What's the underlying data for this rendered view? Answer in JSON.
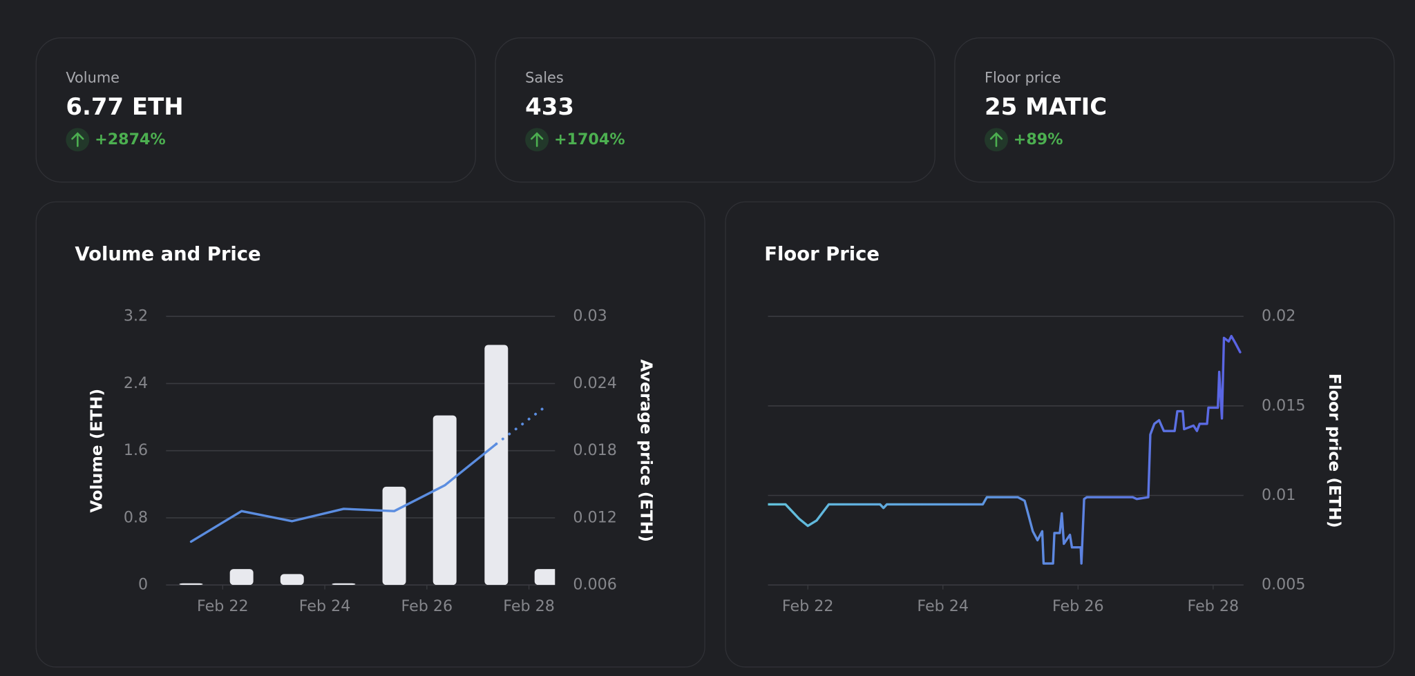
{
  "stats": [
    {
      "label": "Volume",
      "value": "6.77 ETH",
      "change": "+2874%"
    },
    {
      "label": "Sales",
      "value": "433",
      "change": "+1704%"
    },
    {
      "label": "Floor price",
      "value": "25 MATIC",
      "change": "+89%"
    }
  ],
  "chart_data": [
    {
      "type": "bar",
      "title": "Volume and Price",
      "x": [
        21.38,
        22.37,
        23.36,
        24.37,
        25.36,
        26.35,
        27.36,
        28.34
      ],
      "xlim": [
        20.89,
        28.51
      ],
      "xticks": [
        {
          "value": 22,
          "label": "Feb 22"
        },
        {
          "value": 24,
          "label": "Feb 24"
        },
        {
          "value": 26,
          "label": "Feb 26"
        },
        {
          "value": 28,
          "label": "Feb 28"
        }
      ],
      "ylabel": "Volume (ETH)",
      "y2label": "Average price (ETH)",
      "ylim": [
        0,
        3.2
      ],
      "yticks": [
        0,
        0.8,
        1.6,
        2.4,
        3.2
      ],
      "y2lim": [
        0.006,
        0.03
      ],
      "y2ticks": [
        0.006,
        0.012,
        0.018,
        0.024,
        0.03
      ],
      "grid": true,
      "series": [
        {
          "type": "bar",
          "color": "#e8e9ee",
          "values": [
            0.02,
            0.19,
            0.13,
            0.02,
            1.17,
            2.02,
            2.86,
            0.19
          ]
        },
        {
          "type": "line",
          "axis": "y2",
          "color": "#5b8de0",
          "values": [
            0.00987,
            0.0126,
            0.0117,
            0.0128,
            0.0126,
            0.0149,
            0.0186,
            0.022
          ]
        }
      ]
    },
    {
      "type": "line",
      "title": "Floor Price",
      "x": [
        21.41,
        21.67,
        21.87,
        22.0,
        22.13,
        22.31,
        23.07,
        23.12,
        23.17,
        24.59,
        24.65,
        25.11,
        25.21,
        25.33,
        25.4,
        25.47,
        25.49,
        25.63,
        25.65,
        25.73,
        25.76,
        25.79,
        25.88,
        25.91,
        26.04,
        26.05,
        26.09,
        26.13,
        26.81,
        26.87,
        27.04,
        27.07,
        27.13,
        27.2,
        27.27,
        27.43,
        27.47,
        27.55,
        27.57,
        27.71,
        27.76,
        27.8,
        27.91,
        27.93,
        28.07,
        28.09,
        28.13,
        28.16,
        28.23,
        28.27,
        28.33,
        28.4
      ],
      "values": [
        0.0095,
        0.0095,
        0.0087,
        0.0083,
        0.0086,
        0.0095,
        0.0095,
        0.0093,
        0.0095,
        0.0095,
        0.0099,
        0.0099,
        0.0097,
        0.008,
        0.0075,
        0.008,
        0.0062,
        0.0062,
        0.0079,
        0.0079,
        0.009,
        0.0073,
        0.0078,
        0.0071,
        0.0071,
        0.0062,
        0.0098,
        0.0099,
        0.0099,
        0.0098,
        0.0099,
        0.0134,
        0.014,
        0.0142,
        0.0136,
        0.0136,
        0.0147,
        0.0147,
        0.0137,
        0.0139,
        0.0136,
        0.014,
        0.014,
        0.0149,
        0.0149,
        0.0169,
        0.0143,
        0.0188,
        0.0186,
        0.0189,
        0.0185,
        0.018
      ],
      "colors": [
        "#62c2dc",
        "#5a62e4"
      ],
      "xlim": [
        21.41,
        28.45
      ],
      "xticks": [
        {
          "value": 22,
          "label": "Feb 22"
        },
        {
          "value": 24,
          "label": "Feb 24"
        },
        {
          "value": 26,
          "label": "Feb 26"
        },
        {
          "value": 28,
          "label": "Feb 28"
        }
      ],
      "ylabel": "Floor price (ETH)",
      "yaxis_side": "right",
      "ylim": [
        0.005,
        0.02
      ],
      "yticks": [
        0.005,
        0.01,
        0.015,
        0.02
      ],
      "grid": true
    }
  ]
}
